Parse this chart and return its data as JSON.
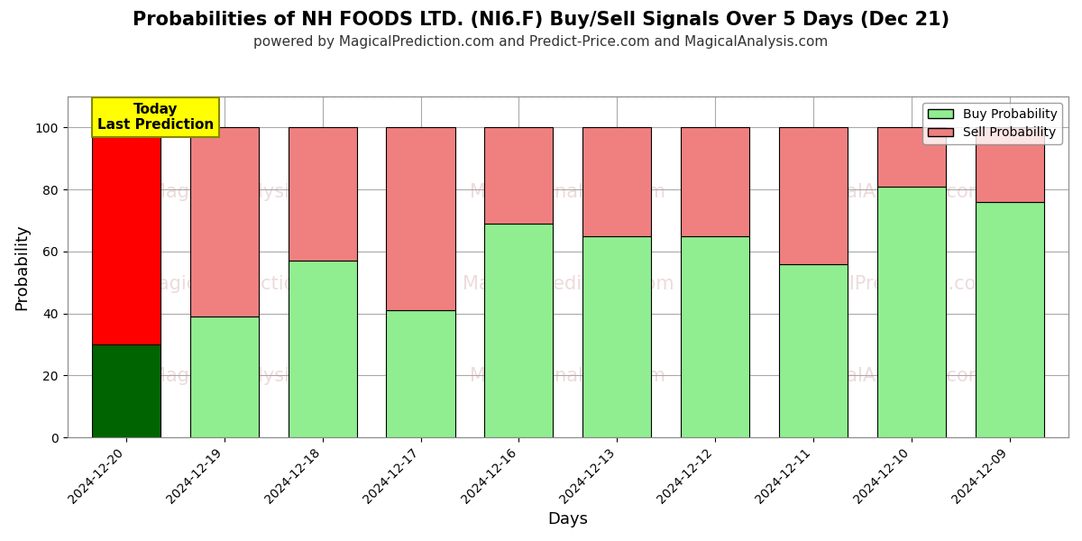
{
  "title": "Probabilities of NH FOODS LTD. (NI6.F) Buy/Sell Signals Over 5 Days (Dec 21)",
  "subtitle": "powered by MagicalPrediction.com and Predict-Price.com and MagicalAnalysis.com",
  "xlabel": "Days",
  "ylabel": "Probability",
  "dates": [
    "2024-12-20",
    "2024-12-19",
    "2024-12-18",
    "2024-12-17",
    "2024-12-16",
    "2024-12-13",
    "2024-12-12",
    "2024-12-11",
    "2024-12-10",
    "2024-12-09"
  ],
  "buy_values": [
    30,
    39,
    57,
    41,
    69,
    65,
    65,
    56,
    81,
    76
  ],
  "sell_values": [
    70,
    61,
    43,
    59,
    31,
    35,
    35,
    44,
    19,
    24
  ],
  "today_buy_color": "#006400",
  "today_sell_color": "#ff0000",
  "buy_color": "#90EE90",
  "sell_color": "#F08080",
  "bar_edge_color": "#000000",
  "ylim": [
    0,
    110
  ],
  "yticks": [
    0,
    20,
    40,
    60,
    80,
    100
  ],
  "dashed_line_y": 110,
  "annotation_text": "Today\nLast Prediction",
  "annotation_bg": "#ffff00",
  "legend_buy_label": "Buy Probability",
  "legend_sell_label": "Sell Probability",
  "bg_color": "#ffffff",
  "grid_color": "#aaaaaa",
  "title_fontsize": 15,
  "subtitle_fontsize": 11,
  "axis_label_fontsize": 13,
  "tick_fontsize": 10,
  "watermark_line1": "MagicalAnalysis.com",
  "watermark_line2": "MagicalPrediction.com",
  "watermark_color": "#cc9999",
  "watermark_alpha": 0.35
}
